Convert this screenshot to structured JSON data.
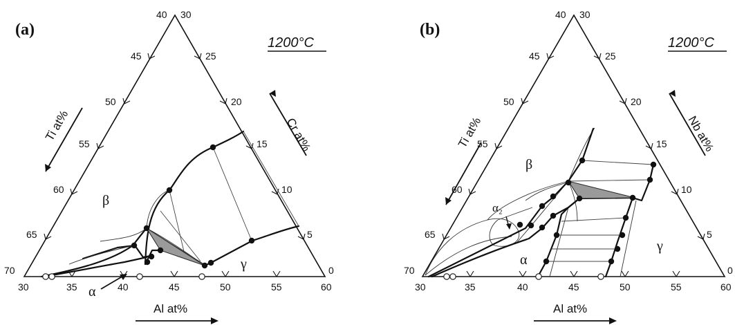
{
  "panels": [
    {
      "label": "(a)",
      "temperature": "1200°C",
      "left_axis_name": "Ti at%",
      "right_axis_name": "Cr at%",
      "bottom_axis_name": "Al at%",
      "bottom_ticks": [
        "30",
        "35",
        "40",
        "45",
        "50",
        "55",
        "60"
      ],
      "left_ticks": [
        "70",
        "65",
        "60",
        "55",
        "50",
        "45",
        "40"
      ],
      "right_ticks": [
        "0",
        "5",
        "10",
        "15",
        "20",
        "25",
        "30"
      ],
      "phase_labels": {
        "beta": "β",
        "alpha": "α",
        "gamma": "γ"
      }
    },
    {
      "label": "(b)",
      "temperature": "1200°C",
      "left_axis_name": "Ti at%",
      "right_axis_name": "Nb at%",
      "bottom_axis_name": "Al at%",
      "bottom_ticks": [
        "30",
        "35",
        "40",
        "45",
        "50",
        "55",
        "60"
      ],
      "left_ticks": [
        "70",
        "65",
        "60",
        "55",
        "50",
        "45",
        "40"
      ],
      "right_ticks": [
        "0",
        "5",
        "10",
        "15",
        "20",
        "25",
        "30"
      ],
      "phase_labels": {
        "beta": "β",
        "alpha2": "α₂",
        "alpha": "α",
        "gamma": "γ"
      }
    }
  ]
}
